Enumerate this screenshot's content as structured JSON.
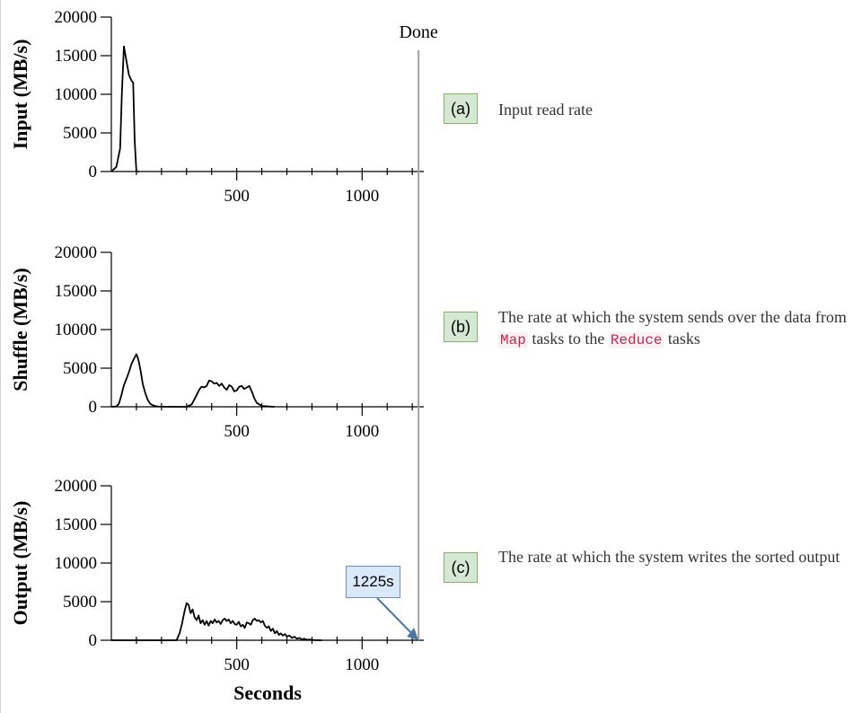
{
  "chart_data": [
    {
      "type": "line",
      "panel": "a",
      "ylabel": "Input (MB/s)",
      "xlabel": "",
      "ylim": [
        0,
        20000
      ],
      "yticks": [
        "0",
        "5000",
        "10000",
        "15000",
        "20000"
      ],
      "xticks": [
        "500",
        "1000"
      ],
      "series": [
        {
          "x": [
            0,
            20,
            35,
            42,
            50,
            62,
            70,
            80,
            87,
            93,
            100,
            110
          ],
          "y": [
            0,
            600,
            3000,
            10000,
            16200,
            14000,
            12500,
            11800,
            11500,
            4000,
            0,
            0
          ]
        }
      ]
    },
    {
      "type": "line",
      "panel": "b",
      "ylabel": "Shuffle (MB/s)",
      "xlabel": "",
      "ylim": [
        0,
        20000
      ],
      "yticks": [
        "0",
        "5000",
        "10000",
        "15000",
        "20000"
      ],
      "xticks": [
        "500",
        "1000"
      ],
      "series": [
        {
          "x": [
            0,
            20,
            30,
            40,
            50,
            60,
            70,
            80,
            90,
            100,
            105,
            110,
            118,
            125,
            135,
            145,
            155,
            165,
            175,
            185,
            200,
            250,
            300,
            320,
            335,
            350,
            360,
            370,
            380,
            390,
            400,
            410,
            420,
            430,
            440,
            450,
            460,
            470,
            480,
            490,
            500,
            510,
            520,
            530,
            540,
            550,
            560,
            570,
            580,
            600,
            650
          ],
          "y": [
            0,
            50,
            400,
            1500,
            2800,
            3600,
            4500,
            5500,
            6200,
            6800,
            6400,
            5800,
            4400,
            3000,
            1800,
            900,
            400,
            200,
            100,
            50,
            20,
            0,
            0,
            300,
            1200,
            2200,
            2600,
            2500,
            2700,
            3400,
            3300,
            3000,
            3100,
            2700,
            3000,
            2500,
            2200,
            2800,
            2600,
            2000,
            2100,
            2600,
            2700,
            2300,
            2500,
            2700,
            2000,
            1100,
            500,
            100,
            0
          ]
        }
      ]
    },
    {
      "type": "line",
      "panel": "c",
      "ylabel": "Output (MB/s)",
      "xlabel": "Seconds",
      "ylim": [
        0,
        20000
      ],
      "yticks": [
        "0",
        "5000",
        "10000",
        "15000",
        "20000"
      ],
      "xticks": [
        "500",
        "1000"
      ],
      "series": [
        {
          "x": [
            0,
            200,
            260,
            272,
            282,
            292,
            300,
            308,
            316,
            324,
            332,
            340,
            348,
            356,
            364,
            372,
            380,
            388,
            396,
            404,
            412,
            420,
            428,
            436,
            444,
            452,
            460,
            468,
            476,
            484,
            492,
            500,
            508,
            516,
            524,
            532,
            540,
            548,
            556,
            564,
            572,
            580,
            588,
            596,
            604,
            612,
            620,
            628,
            636,
            644,
            652,
            660,
            668,
            676,
            684,
            692,
            700,
            710,
            720,
            730,
            740,
            750,
            760,
            770,
            780,
            790,
            800,
            820,
            840
          ],
          "y": [
            0,
            0,
            0,
            900,
            2200,
            3800,
            4800,
            4600,
            3500,
            4000,
            3000,
            2600,
            3200,
            2200,
            2600,
            2000,
            2500,
            1900,
            2500,
            2200,
            2700,
            2300,
            2500,
            2100,
            2600,
            2800,
            2500,
            2700,
            2200,
            2500,
            2100,
            2000,
            2400,
            1800,
            2000,
            1600,
            2300,
            2200,
            2000,
            2600,
            2800,
            2500,
            2600,
            2300,
            2500,
            1900,
            1600,
            1800,
            1200,
            1500,
            900,
            1200,
            700,
            900,
            600,
            800,
            500,
            600,
            300,
            450,
            200,
            300,
            120,
            200,
            60,
            100,
            30,
            10,
            0
          ]
        }
      ]
    }
  ],
  "annotations": {
    "done_label": "Done",
    "done_x": 1225,
    "callout_text": "1225s"
  },
  "panels": [
    {
      "tag": "(a)",
      "desc_parts": [
        {
          "text": "Input read rate"
        }
      ]
    },
    {
      "tag": "(b)",
      "desc_parts": [
        {
          "text": "The rate at which the system sends over the data from "
        },
        {
          "text": "Map",
          "code": true
        },
        {
          "text": " tasks to the "
        },
        {
          "text": "Reduce",
          "code": true
        },
        {
          "text": " tasks"
        }
      ]
    },
    {
      "tag": "(c)",
      "desc_parts": [
        {
          "text": "The rate at which the system writes the sorted output"
        }
      ]
    }
  ],
  "colors": {
    "line": "#000000",
    "done_line": "#a0a0a0",
    "arrow": "#4a78a8",
    "tag_fill": "#d5e8d4",
    "tag_border": "#82b366",
    "callout_fill": "#dae8fc",
    "callout_border": "#6c8ebf",
    "code_text": "#c7254e"
  }
}
